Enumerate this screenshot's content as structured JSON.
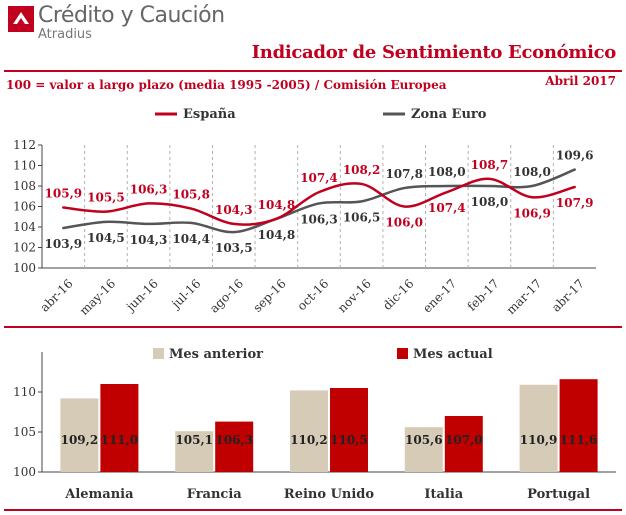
{
  "header": {
    "brand": "Crédito y Caución",
    "brand_sub": "Atradius",
    "title": "Indicador de Sentimiento Económico",
    "subtitle": "100 = valor a largo plazo (media 1995 -2005) / Comisión Europea",
    "date": "Abril 2017"
  },
  "colors": {
    "accent": "#c0001e",
    "spain": "#c0001e",
    "euro": "#555555",
    "prev": "#d6cbb7",
    "curr": "#c00000"
  },
  "chart_data": [
    {
      "type": "line",
      "categories": [
        "abr-16",
        "may-16",
        "jun-16",
        "jul-16",
        "ago-16",
        "sep-16",
        "oct-16",
        "nov-16",
        "dic-16",
        "ene-17",
        "feb-17",
        "mar-17",
        "abr-17"
      ],
      "series": [
        {
          "name": "España",
          "values": [
            105.9,
            105.5,
            106.3,
            105.8,
            104.3,
            104.8,
            107.4,
            108.2,
            106.0,
            107.4,
            108.7,
            106.9,
            107.9
          ]
        },
        {
          "name": "Zona Euro",
          "values": [
            103.9,
            104.5,
            104.3,
            104.4,
            103.5,
            104.8,
            106.3,
            106.5,
            107.8,
            108.0,
            108.0,
            108.0,
            109.6
          ]
        }
      ],
      "yticks": [
        100,
        102,
        104,
        106,
        108,
        110,
        112
      ],
      "ylim": [
        100,
        112
      ],
      "legend": "top",
      "grid": false
    },
    {
      "type": "bar",
      "categories": [
        "Alemania",
        "Francia",
        "Reino Unido",
        "Italia",
        "Portugal"
      ],
      "series": [
        {
          "name": "Mes anterior",
          "values": [
            109.2,
            105.1,
            110.2,
            105.6,
            110.9
          ]
        },
        {
          "name": "Mes actual",
          "values": [
            111.0,
            106.3,
            110.5,
            107.0,
            111.6
          ]
        }
      ],
      "yticks": [
        100,
        105,
        110
      ],
      "ylim": [
        100,
        115
      ],
      "legend": "top",
      "grid": false
    }
  ]
}
